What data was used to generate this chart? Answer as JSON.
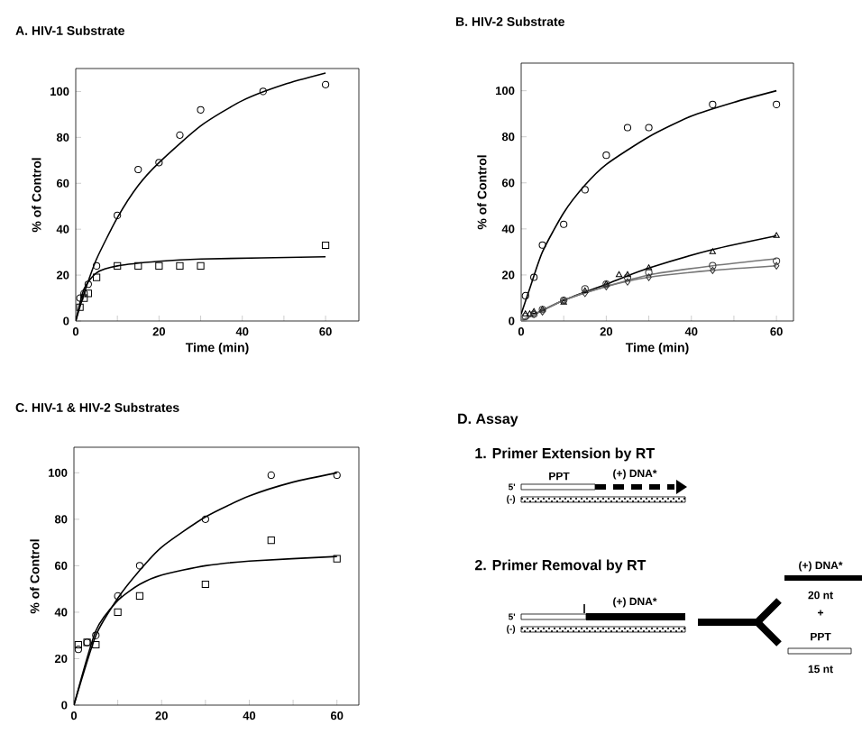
{
  "chart_data": [
    {
      "type": "scatter",
      "title": "A. HIV-1 Substrate",
      "xlabel": "Time (min)",
      "ylabel": "% of Control",
      "xlim": [
        0,
        68
      ],
      "ylim": [
        0,
        110
      ],
      "xticks": [
        0,
        {
          "value": 10,
          "label": null
        },
        20,
        {
          "value": 30,
          "label": null
        },
        40,
        {
          "value": 50,
          "label": null
        },
        60
      ],
      "yticks": [
        0,
        20,
        40,
        60,
        80,
        100
      ],
      "series": [
        {
          "type": "scatter",
          "marker": "circle",
          "color": "#000000",
          "x": [
            1,
            2,
            3,
            5,
            10,
            15,
            20,
            25,
            30,
            45,
            60
          ],
          "values": [
            10,
            12,
            16,
            24,
            46,
            66,
            69,
            81,
            92,
            100,
            103
          ]
        },
        {
          "type": "scatter",
          "marker": "square",
          "color": "#000000",
          "x": [
            1,
            2,
            3,
            5,
            10,
            15,
            20,
            25,
            30,
            60
          ],
          "values": [
            6,
            10,
            12,
            19,
            24,
            24,
            24,
            24,
            24,
            33
          ]
        },
        {
          "type": "line",
          "marker": "none",
          "color": "#000000",
          "x": [
            0,
            2,
            5,
            10,
            15,
            20,
            30,
            40,
            50,
            60
          ],
          "values": [
            0,
            12,
            27,
            45,
            59,
            69,
            85,
            96,
            103,
            108
          ]
        },
        {
          "type": "line",
          "marker": "none",
          "color": "#000000",
          "x": [
            0,
            2,
            5,
            10,
            20,
            30,
            60
          ],
          "values": [
            0,
            14,
            21,
            24,
            26,
            27,
            28
          ]
        }
      ]
    },
    {
      "type": "scatter",
      "title": "B. HIV-2 Substrate",
      "xlabel": "Time (min)",
      "ylabel": "% of Control",
      "xlim": [
        0,
        64
      ],
      "ylim": [
        0,
        112
      ],
      "xticks": [
        0,
        {
          "value": 10,
          "label": null
        },
        20,
        {
          "value": 30,
          "label": null
        },
        40,
        {
          "value": 50,
          "label": null
        },
        60
      ],
      "yticks": [
        0,
        20,
        40,
        60,
        80,
        100
      ],
      "series": [
        {
          "type": "scatter",
          "marker": "circle",
          "color": "#000000",
          "x": [
            1,
            3,
            5,
            10,
            15,
            20,
            25,
            30,
            45,
            60
          ],
          "values": [
            11,
            19,
            33,
            42,
            57,
            72,
            84,
            84,
            94,
            94
          ]
        },
        {
          "type": "scatter",
          "marker": "triangle",
          "color": "#000000",
          "x": [
            1,
            2,
            3,
            5,
            10,
            15,
            20,
            23,
            25,
            30,
            45,
            60
          ],
          "values": [
            3,
            3,
            4,
            5,
            8,
            13,
            16,
            20,
            20,
            23,
            30,
            37
          ]
        },
        {
          "type": "scatter",
          "marker": "circle",
          "color": "#333333",
          "x": [
            1,
            3,
            5,
            10,
            15,
            20,
            25,
            30,
            45,
            60
          ],
          "values": [
            2,
            3,
            5,
            9,
            14,
            16,
            19,
            21,
            24,
            26
          ]
        },
        {
          "type": "scatter",
          "marker": "diamond",
          "color": "#333333",
          "x": [
            3,
            5,
            10,
            15,
            20,
            25,
            30,
            45,
            60
          ],
          "values": [
            3,
            4,
            9,
            12,
            15,
            17,
            19,
            22,
            24
          ]
        },
        {
          "type": "line",
          "marker": "none",
          "color": "#000000",
          "x": [
            0,
            2,
            5,
            10,
            15,
            20,
            30,
            40,
            50,
            60
          ],
          "values": [
            3,
            14,
            30,
            47,
            59,
            68,
            80,
            89,
            95,
            100
          ]
        },
        {
          "type": "line",
          "marker": "none",
          "color": "#000000",
          "x": [
            0,
            10,
            20,
            30,
            45,
            60
          ],
          "values": [
            0,
            9,
            16,
            23,
            31,
            37
          ]
        },
        {
          "type": "line",
          "marker": "none",
          "color": "#777777",
          "x": [
            0,
            10,
            20,
            30,
            45,
            60
          ],
          "values": [
            0,
            9,
            15,
            20,
            24,
            27
          ]
        },
        {
          "type": "line",
          "marker": "none",
          "color": "#777777",
          "x": [
            0,
            10,
            20,
            30,
            45,
            60
          ],
          "values": [
            0,
            9,
            15,
            19,
            22,
            24
          ]
        }
      ]
    },
    {
      "type": "scatter",
      "title": "C. HIV-1 & HIV-2 Substrates",
      "ylabel": "% of Control",
      "xlim": [
        0,
        65
      ],
      "ylim": [
        0,
        111
      ],
      "xticks": [
        0,
        {
          "value": 10,
          "label": null
        },
        20,
        {
          "value": 30,
          "label": null
        },
        40,
        {
          "value": 50,
          "label": null
        },
        60
      ],
      "yticks": [
        0,
        20,
        40,
        60,
        80,
        100
      ],
      "series": [
        {
          "type": "scatter",
          "marker": "circle",
          "color": "#000000",
          "x": [
            1,
            3,
            5,
            10,
            15,
            30,
            45,
            60
          ],
          "values": [
            24,
            27,
            30,
            47,
            60,
            80,
            99,
            99
          ]
        },
        {
          "type": "scatter",
          "marker": "square",
          "color": "#000000",
          "x": [
            1,
            3,
            5,
            10,
            15,
            30,
            45,
            60
          ],
          "values": [
            26,
            27,
            26,
            40,
            47,
            52,
            71,
            63
          ]
        },
        {
          "type": "line",
          "marker": "none",
          "color": "#000000",
          "x": [
            0,
            5,
            10,
            15,
            20,
            30,
            40,
            50,
            60
          ],
          "values": [
            0,
            30,
            46,
            58,
            68,
            81,
            90,
            96,
            100
          ]
        },
        {
          "type": "line",
          "marker": "none",
          "color": "#000000",
          "x": [
            0,
            5,
            10,
            15,
            20,
            30,
            40,
            60
          ],
          "values": [
            0,
            32,
            45,
            52,
            56,
            60,
            62,
            64
          ]
        }
      ]
    },
    {
      "type": "other",
      "title": "D. Assay",
      "annotations": [
        "1. Primer Extension by RT",
        "PPT",
        "(+) DNA*",
        "5'",
        "(-)",
        "2. Primer Removal by RT",
        "(+) DNA*",
        "5'",
        "(-)",
        "(+) DNA*",
        "20 nt",
        "+",
        "PPT",
        "15 nt"
      ]
    }
  ]
}
